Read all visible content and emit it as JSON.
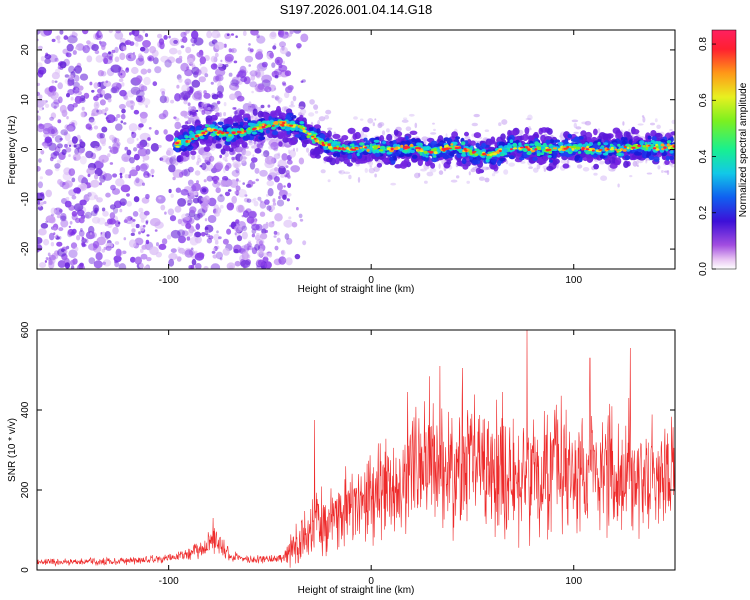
{
  "title": "S197.2026.001.04.14.G18",
  "chart_data": [
    {
      "type": "heatmap",
      "title": "S197.2026.001.04.14.G18",
      "xlabel": "Height of straight line (km)",
      "ylabel": "Frequency (Hz)",
      "xlim": [
        -165,
        150
      ],
      "ylim": [
        -24,
        24
      ],
      "xticks": [
        -100,
        0,
        100
      ],
      "yticks": [
        -20,
        -10,
        0,
        10,
        20
      ],
      "xtick_labels": [
        "-100",
        "0",
        "100"
      ],
      "ytick_labels": [
        "-20",
        "-10",
        "0",
        "10",
        "20"
      ],
      "colorbar": {
        "label": "Normalized spectral amplitude",
        "range": [
          0,
          0.85
        ],
        "ticks": [
          0.0,
          0.2,
          0.4,
          0.6,
          0.8
        ],
        "tick_labels": [
          "0.0",
          "0.2",
          "0.4",
          "0.6",
          "0.8"
        ]
      },
      "ridge": {
        "x_km": [
          -97,
          -90,
          -80,
          -70,
          -60,
          -50,
          -45,
          -40,
          -35,
          -30,
          -25,
          -20,
          -10,
          0,
          10,
          20,
          30,
          40,
          50,
          60,
          70,
          80,
          90,
          100,
          110,
          120,
          130,
          140,
          150
        ],
        "freq_hz": [
          1,
          2,
          4,
          3,
          4,
          5,
          5,
          5,
          4.5,
          3,
          1.5,
          0.5,
          0,
          0.5,
          0,
          0.5,
          -0.5,
          0.5,
          -0.5,
          -1,
          0.5,
          0,
          0,
          0.5,
          0,
          0,
          0.5,
          0.5,
          0.5
        ]
      }
    },
    {
      "type": "line",
      "xlabel": "Height of straight line (km)",
      "ylabel": "SNR (10 * v/v)",
      "xlim": [
        -165,
        150
      ],
      "ylim": [
        0,
        600
      ],
      "xticks": [
        -100,
        0,
        100
      ],
      "yticks": [
        0,
        200,
        400,
        600
      ],
      "xtick_labels": [
        "-100",
        "0",
        "100"
      ],
      "ytick_labels": [
        "0",
        "200",
        "400",
        "600"
      ],
      "color": "#ee2a2a",
      "series": [
        {
          "name": "SNR",
          "x": [
            -165,
            -150,
            -130,
            -110,
            -100,
            -90,
            -80,
            -76,
            -72,
            -65,
            -55,
            -45,
            -40,
            -35,
            -30,
            -20,
            -10,
            0,
            10,
            20,
            30,
            40,
            50,
            60,
            70,
            80,
            90,
            100,
            110,
            120,
            130,
            140,
            150
          ],
          "mean": [
            20,
            20,
            22,
            25,
            30,
            40,
            60,
            80,
            45,
            30,
            25,
            28,
            45,
            70,
            100,
            130,
            160,
            180,
            210,
            230,
            260,
            250,
            270,
            250,
            240,
            245,
            240,
            235,
            245,
            240,
            235,
            240,
            240
          ],
          "amp": [
            8,
            8,
            9,
            10,
            12,
            15,
            25,
            40,
            20,
            10,
            10,
            12,
            40,
            60,
            80,
            90,
            100,
            110,
            130,
            140,
            150,
            150,
            160,
            150,
            160,
            160,
            150,
            150,
            150,
            150,
            150,
            150,
            140
          ],
          "peaks": [
            {
              "x": -78,
              "y": 130
            },
            {
              "x": -28,
              "y": 375
            },
            {
              "x": 18,
              "y": 445
            },
            {
              "x": 34,
              "y": 510
            },
            {
              "x": 45,
              "y": 505
            },
            {
              "x": 77,
              "y": 600
            },
            {
              "x": 108,
              "y": 530
            },
            {
              "x": 128,
              "y": 555
            }
          ]
        }
      ]
    }
  ]
}
